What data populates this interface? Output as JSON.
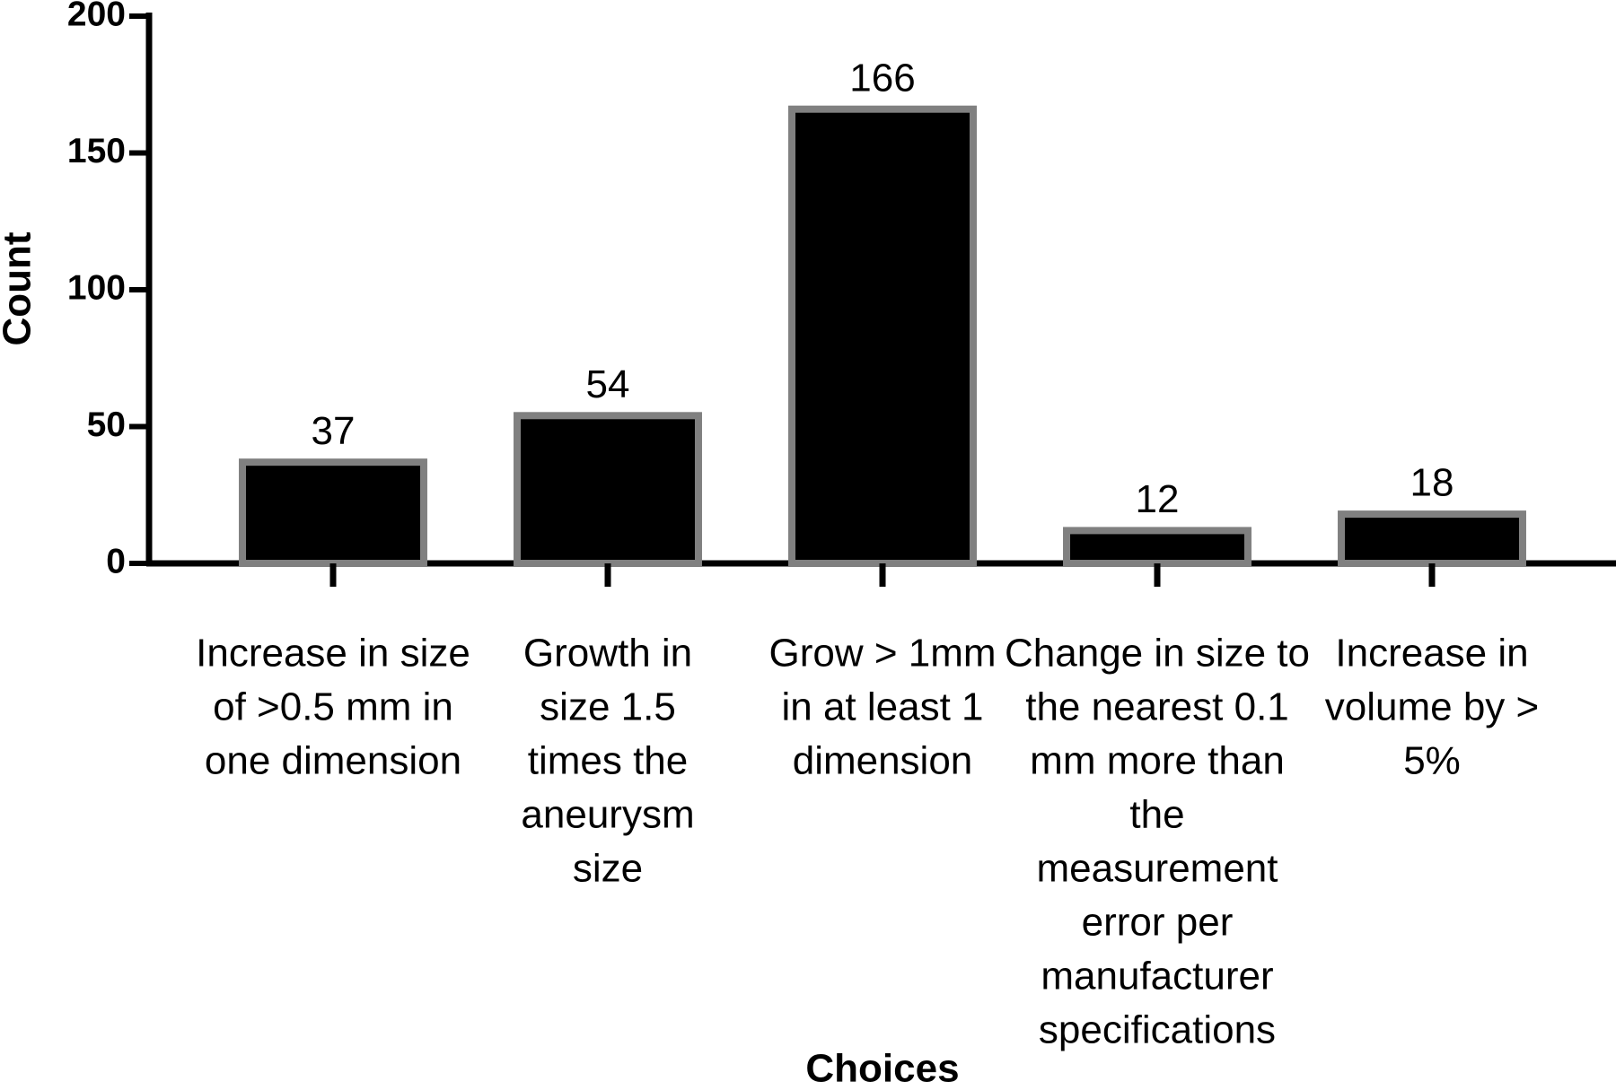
{
  "chart_data": {
    "type": "bar",
    "x_label": "Choices",
    "y_label": "Count",
    "categories": [
      [
        "Increase in size",
        "of >0.5 mm in",
        "one dimension"
      ],
      [
        "Growth in",
        "size 1.5",
        "times the",
        "aneurysm",
        "size"
      ],
      [
        "Grow > 1mm",
        "in at least 1",
        "dimension"
      ],
      [
        "Change in size to",
        "the nearest 0.1",
        "mm more than",
        "the",
        "measurement",
        "error per",
        "manufacturer",
        "specifications"
      ],
      [
        "Increase in",
        "volume by >",
        "5%"
      ]
    ],
    "values": [
      37,
      54,
      166,
      12,
      18
    ],
    "color": "#000000",
    "edge_color": "#808080",
    "ylim": [
      0,
      200
    ],
    "yticks": [
      0,
      50,
      100,
      150,
      200
    ],
    "grid": false
  }
}
